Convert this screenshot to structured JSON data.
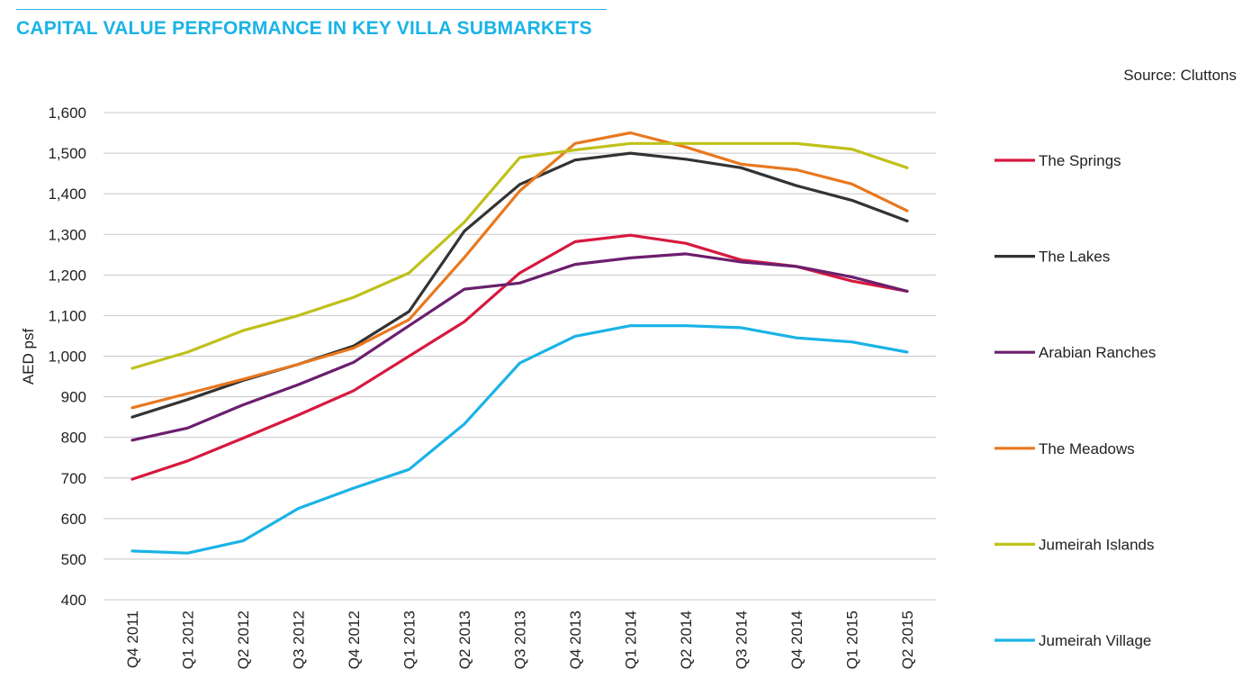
{
  "header": {
    "title": "CAPITAL VALUE PERFORMANCE IN KEY VILLA SUBMARKETS",
    "source": "Source: Cluttons"
  },
  "chart_data": {
    "type": "line",
    "title": "CAPITAL VALUE PERFORMANCE IN KEY VILLA SUBMARKETS",
    "xlabel": "",
    "ylabel": "AED psf",
    "ylim": [
      400,
      1600
    ],
    "yticks": [
      400,
      500,
      600,
      700,
      800,
      900,
      1000,
      1100,
      1200,
      1300,
      1400,
      1500,
      1600
    ],
    "ytick_labels": [
      "400",
      "500",
      "600",
      "700",
      "800",
      "900",
      "1,000",
      "1,100",
      "1,200",
      "1,300",
      "1,400",
      "1,500",
      "1,600"
    ],
    "grid": true,
    "legend_position": "right",
    "categories": [
      "Q4 2011",
      "Q1 2012",
      "Q2 2012",
      "Q3 2012",
      "Q4 2012",
      "Q1 2013",
      "Q2 2013",
      "Q3 2013",
      "Q4 2013",
      "Q1 2014",
      "Q2 2014",
      "Q3 2014",
      "Q4 2014",
      "Q1 2015",
      "Q2 2015"
    ],
    "series": [
      {
        "name": "The Springs",
        "color": "#d7193f",
        "values": [
          697,
          742,
          798,
          855,
          915,
          1000,
          1085,
          1205,
          1282,
          1298,
          1278,
          1237,
          1221,
          1185,
          1160
        ]
      },
      {
        "name": "The Lakes",
        "color": "#333333",
        "values": [
          850,
          893,
          940,
          980,
          1025,
          1110,
          1308,
          1423,
          1483,
          1500,
          1485,
          1464,
          1420,
          1384,
          1333
        ]
      },
      {
        "name": "Arabian Ranches",
        "color": "#6b1f6e",
        "values": [
          793,
          823,
          880,
          930,
          985,
          1075,
          1165,
          1180,
          1226,
          1242,
          1252,
          1232,
          1221,
          1195,
          1160
        ]
      },
      {
        "name": "The Meadows",
        "color": "#e8781f",
        "values": [
          873,
          908,
          943,
          980,
          1020,
          1090,
          1243,
          1407,
          1524,
          1550,
          1515,
          1473,
          1459,
          1424,
          1358
        ]
      },
      {
        "name": "Jumeirah Islands",
        "color": "#bfc11a",
        "values": [
          970,
          1010,
          1063,
          1100,
          1145,
          1205,
          1330,
          1489,
          1508,
          1524,
          1524,
          1524,
          1524,
          1510,
          1464
        ]
      },
      {
        "name": "Jumeirah Village",
        "color": "#1ab3e6",
        "values": [
          520,
          515,
          545,
          625,
          675,
          721,
          833,
          983,
          1049,
          1075,
          1075,
          1070,
          1045,
          1035,
          1010
        ]
      }
    ]
  }
}
